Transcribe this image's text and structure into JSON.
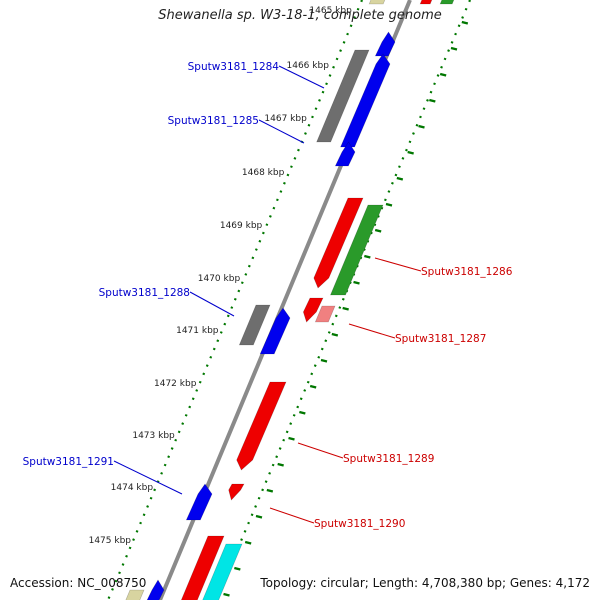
{
  "title": "Shewanella sp. W3-18-1, complete genome",
  "accession": "Accession: NC_008750",
  "summary": "Topology: circular; Length: 4,708,380 bp; Genes: 4,172",
  "kbp_labels": [
    "1465 kbp",
    "1466 kbp",
    "1467 kbp",
    "1468 kbp",
    "1469 kbp",
    "1470 kbp",
    "1471 kbp",
    "1472 kbp",
    "1473 kbp",
    "1474 kbp",
    "1475 kbp"
  ],
  "gene_labels": [
    {
      "text": "Sputw3181_1284",
      "side": "left",
      "color": "#0000cc"
    },
    {
      "text": "Sputw3181_1285",
      "side": "left",
      "color": "#0000cc"
    },
    {
      "text": "Sputw3181_1286",
      "side": "right",
      "color": "#cc0000"
    },
    {
      "text": "Sputw3181_1287",
      "side": "right",
      "color": "#cc0000"
    },
    {
      "text": "Sputw3181_1288",
      "side": "left",
      "color": "#0000cc"
    },
    {
      "text": "Sputw3181_1289",
      "side": "right",
      "color": "#cc0000"
    },
    {
      "text": "Sputw3181_1291",
      "side": "left",
      "color": "#0000cc"
    },
    {
      "text": "Sputw3181_1290",
      "side": "right",
      "color": "#cc0000"
    }
  ],
  "colors": {
    "backbone": "#8a8a8a",
    "forward_gene": "#0000ee",
    "reverse_gene": "#ee0000",
    "pseudo_gene": "#6e6e6e",
    "rna_gene": "#2a9a2a",
    "cyan_gene": "#00e5e5",
    "pink_gene": "#f08080",
    "tick_green": "#007700",
    "khaki": "#d8d4a0"
  }
}
